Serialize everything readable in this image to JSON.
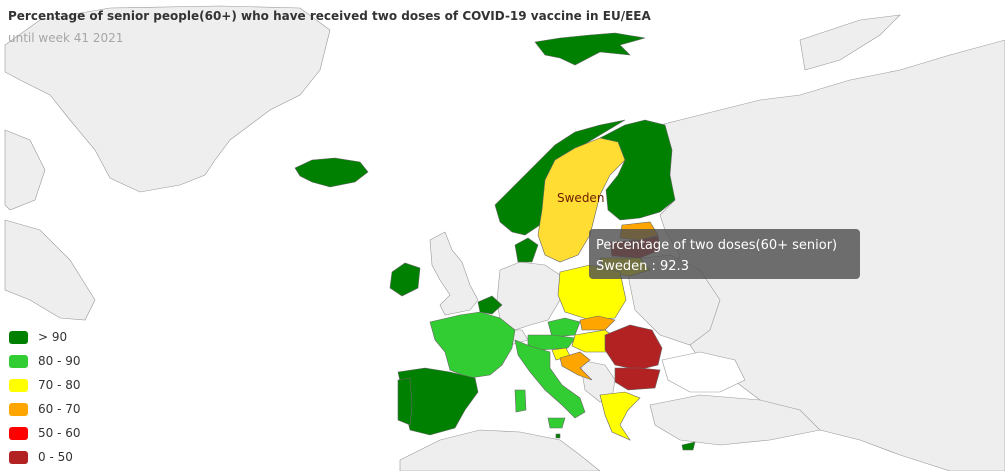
{
  "header": {
    "title": "Percentage of senior people(60+) who have received two doses of COVID-19 vaccine in EU/EEA",
    "subtitle": "until week 41 2021"
  },
  "colors": {
    "background_land": "#eeeeee",
    "border": "#999999",
    "gt90": "#008000",
    "r80_90": "#32cd32",
    "r70_80": "#ffff00",
    "r60_70": "#ffa500",
    "r50_60": "#ff0000",
    "r0_50": "#b22222",
    "highlight": "#ffdd33"
  },
  "legend": {
    "items": [
      {
        "label": "> 90",
        "color": "#008000"
      },
      {
        "label": "80 - 90",
        "color": "#32cd32"
      },
      {
        "label": "70 - 80",
        "color": "#ffff00"
      },
      {
        "label": "60 - 70",
        "color": "#ffa500"
      },
      {
        "label": "50 - 60",
        "color": "#ff0000"
      },
      {
        "label": "0 - 50",
        "color": "#b22222"
      }
    ]
  },
  "tooltip": {
    "heading": "Percentage of two doses(60+ senior)",
    "line": "Sweden : 92.3"
  },
  "map_label": "Sweden",
  "countries": [
    {
      "name": "Sweden",
      "category": "highlight"
    },
    {
      "name": "Norway",
      "category": "gt90"
    },
    {
      "name": "Finland",
      "category": "gt90"
    },
    {
      "name": "Iceland",
      "category": "gt90"
    },
    {
      "name": "Svalbard",
      "category": "gt90"
    },
    {
      "name": "Denmark",
      "category": "gt90"
    },
    {
      "name": "Ireland",
      "category": "gt90"
    },
    {
      "name": "Belgium",
      "category": "gt90"
    },
    {
      "name": "Spain",
      "category": "gt90"
    },
    {
      "name": "Portugal",
      "category": "gt90"
    },
    {
      "name": "Malta",
      "category": "gt90"
    },
    {
      "name": "Cyprus",
      "category": "gt90"
    },
    {
      "name": "France",
      "category": "r80_90"
    },
    {
      "name": "Italy",
      "category": "r80_90"
    },
    {
      "name": "Austria",
      "category": "r80_90"
    },
    {
      "name": "Czechia",
      "category": "r80_90"
    },
    {
      "name": "Estonia",
      "category": "r60_70"
    },
    {
      "name": "Latvia",
      "category": "r0_50"
    },
    {
      "name": "Lithuania",
      "category": "r70_80"
    },
    {
      "name": "Poland",
      "category": "r70_80"
    },
    {
      "name": "Hungary",
      "category": "r70_80"
    },
    {
      "name": "Slovakia",
      "category": "r60_70"
    },
    {
      "name": "Slovenia",
      "category": "r70_80"
    },
    {
      "name": "Croatia",
      "category": "r60_70"
    },
    {
      "name": "Greece",
      "category": "r70_80"
    },
    {
      "name": "Romania",
      "category": "r0_50"
    },
    {
      "name": "Bulgaria",
      "category": "r0_50"
    }
  ]
}
